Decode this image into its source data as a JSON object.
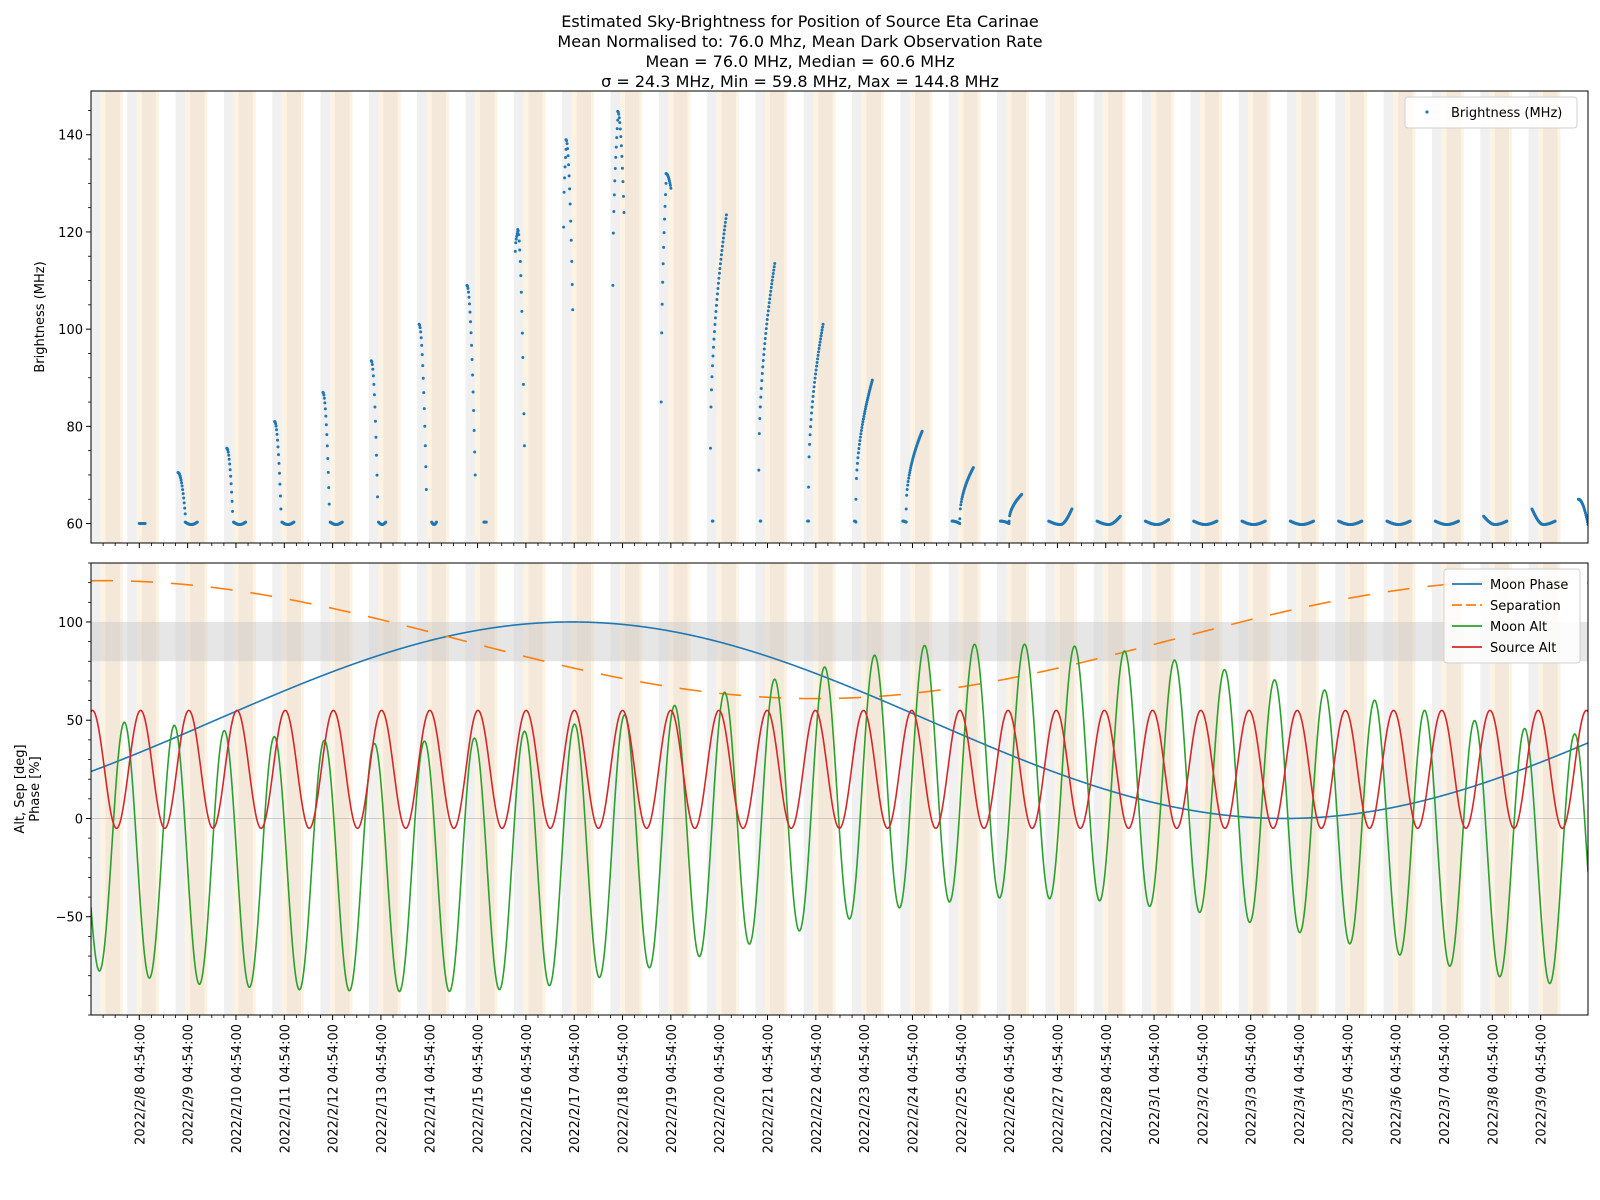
{
  "title_lines": [
    "Estimated Sky-Brightness for Position of Source Eta Carinae",
    "Mean Normalised to: 76.0 Mhz, Mean Dark Observation Rate",
    "Mean = 76.0 MHz, Median = 60.6 MHz",
    "σ = 24.3 MHz, Min = 59.8 MHz, Max = 144.8 MHz"
  ],
  "chart_data": [
    {
      "type": "scatter",
      "panel": "top",
      "ylabel": "Brightness (MHz)",
      "ylim": [
        56,
        149
      ],
      "yticks": [
        60,
        80,
        100,
        120,
        140
      ],
      "legend": {
        "position": "upper right",
        "entries": [
          "Brightness (MHz)"
        ]
      },
      "series": [
        {
          "name": "Brightness (MHz)",
          "color": "#1f77b4",
          "point_every_days": 0.0104,
          "segments": [
            {
              "x_start_day": 0.0,
              "x_end_day": 0.12,
              "values": [
                60.0,
                60.0
              ]
            },
            {
              "x_start_day": 0.8,
              "x_end_day": 0.95,
              "values": [
                70.5,
                62.0
              ]
            },
            {
              "x_start_day": 0.95,
              "x_end_day": 1.2,
              "values": [
                60.3,
                59.8,
                60.3
              ]
            },
            {
              "x_start_day": 1.81,
              "x_end_day": 1.93,
              "values": [
                75.5,
                62.5
              ]
            },
            {
              "x_start_day": 1.95,
              "x_end_day": 2.2,
              "values": [
                60.3,
                59.8,
                60.3
              ]
            },
            {
              "x_start_day": 2.8,
              "x_end_day": 2.93,
              "values": [
                81.0,
                63.0
              ]
            },
            {
              "x_start_day": 2.95,
              "x_end_day": 3.2,
              "values": [
                60.3,
                59.8,
                60.3
              ]
            },
            {
              "x_start_day": 3.8,
              "x_end_day": 3.93,
              "values": [
                87.0,
                64.0
              ]
            },
            {
              "x_start_day": 3.95,
              "x_end_day": 4.2,
              "values": [
                60.3,
                59.8,
                60.3
              ]
            },
            {
              "x_start_day": 4.8,
              "x_end_day": 4.93,
              "values": [
                93.5,
                65.5
              ]
            },
            {
              "x_start_day": 4.95,
              "x_end_day": 5.1,
              "values": [
                60.3,
                59.8,
                60.3
              ]
            },
            {
              "x_start_day": 5.79,
              "x_end_day": 5.94,
              "values": [
                101.0,
                67.0
              ]
            },
            {
              "x_start_day": 6.05,
              "x_end_day": 6.15,
              "values": [
                60.3,
                59.8,
                60.3
              ]
            },
            {
              "x_start_day": 6.78,
              "x_end_day": 6.95,
              "values": [
                109.0,
                70.0
              ]
            },
            {
              "x_start_day": 7.13,
              "x_end_day": 7.18,
              "values": [
                60.3,
                60.3
              ]
            },
            {
              "x_start_day": 7.78,
              "x_end_day": 7.83,
              "values": [
                116.0,
                120.0
              ]
            },
            {
              "x_start_day": 7.83,
              "x_end_day": 7.97,
              "values": [
                120.5,
                76.0
              ]
            },
            {
              "x_start_day": 8.78,
              "x_end_day": 8.83,
              "values": [
                121.0,
                137.0
              ]
            },
            {
              "x_start_day": 8.83,
              "x_end_day": 8.97,
              "values": [
                139.0,
                104.0
              ]
            },
            {
              "x_start_day": 9.8,
              "x_end_day": 9.9,
              "values": [
                109.0,
                143.0
              ]
            },
            {
              "x_start_day": 9.9,
              "x_end_day": 10.03,
              "values": [
                144.8,
                124.0
              ]
            },
            {
              "x_start_day": 10.8,
              "x_end_day": 10.9,
              "values": [
                85.0,
                130.0
              ]
            },
            {
              "x_start_day": 10.9,
              "x_end_day": 11.0,
              "values": [
                132.0,
                129.0
              ]
            },
            {
              "x_start_day": 11.86,
              "x_end_day": 11.87,
              "values": [
                60.5,
                60.5
              ]
            },
            {
              "x_start_day": 11.82,
              "x_end_day": 12.15,
              "values": [
                75.5,
                123.5
              ]
            },
            {
              "x_start_day": 12.85,
              "x_end_day": 12.86,
              "values": [
                60.5,
                60.5
              ]
            },
            {
              "x_start_day": 12.82,
              "x_end_day": 13.15,
              "values": [
                71.0,
                113.5
              ]
            },
            {
              "x_start_day": 13.83,
              "x_end_day": 13.85,
              "values": [
                60.5,
                60.5
              ]
            },
            {
              "x_start_day": 13.85,
              "x_end_day": 14.15,
              "values": [
                67.5,
                101.0
              ]
            },
            {
              "x_start_day": 14.8,
              "x_end_day": 14.83,
              "values": [
                60.5,
                60.3
              ]
            },
            {
              "x_start_day": 14.83,
              "x_end_day": 15.17,
              "values": [
                65.0,
                89.5
              ]
            },
            {
              "x_start_day": 15.8,
              "x_end_day": 15.87,
              "values": [
                60.5,
                60.3
              ]
            },
            {
              "x_start_day": 15.87,
              "x_end_day": 16.2,
              "values": [
                63.0,
                79.0
              ]
            },
            {
              "x_start_day": 16.82,
              "x_end_day": 16.98,
              "values": [
                60.5,
                60.0
              ]
            },
            {
              "x_start_day": 16.98,
              "x_end_day": 17.26,
              "values": [
                61.0,
                71.5
              ]
            },
            {
              "x_start_day": 17.82,
              "x_end_day": 18.0,
              "values": [
                60.5,
                60.0
              ]
            },
            {
              "x_start_day": 18.0,
              "x_end_day": 18.26,
              "values": [
                60.5,
                66.0
              ]
            },
            {
              "x_start_day": 18.82,
              "x_end_day": 19.3,
              "values": [
                60.5,
                59.8,
                63.0
              ]
            },
            {
              "x_start_day": 19.82,
              "x_end_day": 20.3,
              "values": [
                60.5,
                59.8,
                61.5
              ]
            },
            {
              "x_start_day": 20.82,
              "x_end_day": 21.3,
              "values": [
                60.5,
                59.8,
                60.8
              ]
            },
            {
              "x_start_day": 21.82,
              "x_end_day": 22.3,
              "values": [
                60.5,
                59.8,
                60.5
              ]
            },
            {
              "x_start_day": 22.82,
              "x_end_day": 23.3,
              "values": [
                60.5,
                59.8,
                60.5
              ]
            },
            {
              "x_start_day": 23.82,
              "x_end_day": 24.3,
              "values": [
                60.5,
                59.8,
                60.5
              ]
            },
            {
              "x_start_day": 24.82,
              "x_end_day": 25.3,
              "values": [
                60.5,
                59.8,
                60.5
              ]
            },
            {
              "x_start_day": 25.82,
              "x_end_day": 26.3,
              "values": [
                60.5,
                59.8,
                60.5
              ]
            },
            {
              "x_start_day": 26.82,
              "x_end_day": 27.3,
              "values": [
                60.5,
                59.8,
                60.5
              ]
            },
            {
              "x_start_day": 27.82,
              "x_end_day": 28.3,
              "values": [
                61.5,
                59.8,
                60.5
              ]
            },
            {
              "x_start_day": 28.82,
              "x_end_day": 29.3,
              "values": [
                63.0,
                59.8,
                60.5
              ]
            },
            {
              "x_start_day": 29.78,
              "x_end_day": 29.98,
              "values": [
                65.0,
                59.8
              ]
            }
          ]
        }
      ]
    },
    {
      "type": "line",
      "panel": "bottom",
      "ylabel": "Alt, Sep [deg]\nPhase [%]",
      "ylim": [
        -100,
        130
      ],
      "yticks": [
        -50,
        0,
        50,
        100
      ],
      "xlim_days": [
        -1,
        29.98
      ],
      "x_origin": "2022/2/8 04:54:00",
      "x_tick_labels": [
        "2022/2/8 04:54:00",
        "2022/2/9 04:54:00",
        "2022/2/10 04:54:00",
        "2022/2/11 04:54:00",
        "2022/2/12 04:54:00",
        "2022/2/13 04:54:00",
        "2022/2/14 04:54:00",
        "2022/2/15 04:54:00",
        "2022/2/16 04:54:00",
        "2022/2/17 04:54:00",
        "2022/2/18 04:54:00",
        "2022/2/19 04:54:00",
        "2022/2/20 04:54:00",
        "2022/2/21 04:54:00",
        "2022/2/22 04:54:00",
        "2022/2/23 04:54:00",
        "2022/2/24 04:54:00",
        "2022/2/25 04:54:00",
        "2022/2/26 04:54:00",
        "2022/2/27 04:54:00",
        "2022/2/28 04:54:00",
        "2022/3/1 04:54:00",
        "2022/3/2 04:54:00",
        "2022/3/3 04:54:00",
        "2022/3/4 04:54:00",
        "2022/3/5 04:54:00",
        "2022/3/6 04:54:00",
        "2022/3/7 04:54:00",
        "2022/3/8 04:54:00",
        "2022/3/9 04:54:00"
      ],
      "horizontal_band": [
        80,
        100
      ],
      "legend": {
        "position": "upper right",
        "entries": [
          "Moon Phase",
          "Separation",
          "Moon Alt",
          "Source Alt"
        ]
      },
      "series": [
        {
          "name": "Moon Phase",
          "color": "#1f77b4",
          "style": "solid",
          "model": {
            "kind": "cosine",
            "center": 50,
            "amplitude": 50,
            "peak_day": 8.95,
            "period_days": 29.5
          }
        },
        {
          "name": "Separation",
          "color": "#ff7f0e",
          "style": "dashed",
          "model": {
            "kind": "cosine",
            "center": 91,
            "amplitude": 30,
            "trough_day": 14.0,
            "period_days": 29.5
          }
        },
        {
          "name": "Moon Alt",
          "color": "#2ca02c",
          "style": "solid",
          "model": {
            "kind": "diurnal",
            "peak_day_at_start": -0.31,
            "peak_drift_days_per_day": 0.035,
            "max_envelope": [
              [
                -1,
                50
              ],
              [
                1,
                47
              ],
              [
                3,
                41
              ],
              [
                5,
                38
              ],
              [
                7,
                41
              ],
              [
                9,
                48
              ],
              [
                11,
                57
              ],
              [
                13,
                70
              ],
              [
                15,
                82
              ],
              [
                16.2,
                88
              ],
              [
                18,
                89
              ],
              [
                20,
                87
              ],
              [
                22,
                78
              ],
              [
                24,
                68
              ],
              [
                26,
                58
              ],
              [
                28,
                48
              ],
              [
                29.5,
                43
              ]
            ],
            "min_envelope": [
              [
                -1,
                -77
              ],
              [
                1,
                -84
              ],
              [
                3,
                -87
              ],
              [
                5,
                -88
              ],
              [
                7,
                -88
              ],
              [
                8.5,
                -85
              ],
              [
                10,
                -79
              ],
              [
                12,
                -68
              ],
              [
                14,
                -55
              ],
              [
                16,
                -44
              ],
              [
                18,
                -40
              ],
              [
                20,
                -42
              ],
              [
                22,
                -48
              ],
              [
                24,
                -58
              ],
              [
                26,
                -69
              ],
              [
                28,
                -80
              ],
              [
                29.5,
                -85
              ]
            ]
          }
        },
        {
          "name": "Source Alt",
          "color": "#d62728",
          "style": "solid",
          "model": {
            "kind": "diurnal",
            "max": 55,
            "min": -5,
            "peak_day_at_start": -0.97,
            "period_days": 0.9973
          }
        }
      ]
    }
  ],
  "night_shading": {
    "grey_start_days": [
      -1.0,
      -0.25,
      0.75,
      1.75,
      2.75,
      3.75,
      4.75,
      5.75,
      6.75,
      7.75,
      8.75,
      9.75,
      10.75,
      11.75,
      12.75,
      13.75,
      14.75,
      15.75,
      16.75,
      17.75,
      18.75,
      19.75,
      20.75,
      21.75,
      22.75,
      23.75,
      24.75,
      25.75,
      26.75,
      27.75,
      28.75
    ],
    "colors": {
      "grey": "#f0f0f0",
      "twilight": "#fdf3e2",
      "dark": "#f3e8da"
    }
  }
}
